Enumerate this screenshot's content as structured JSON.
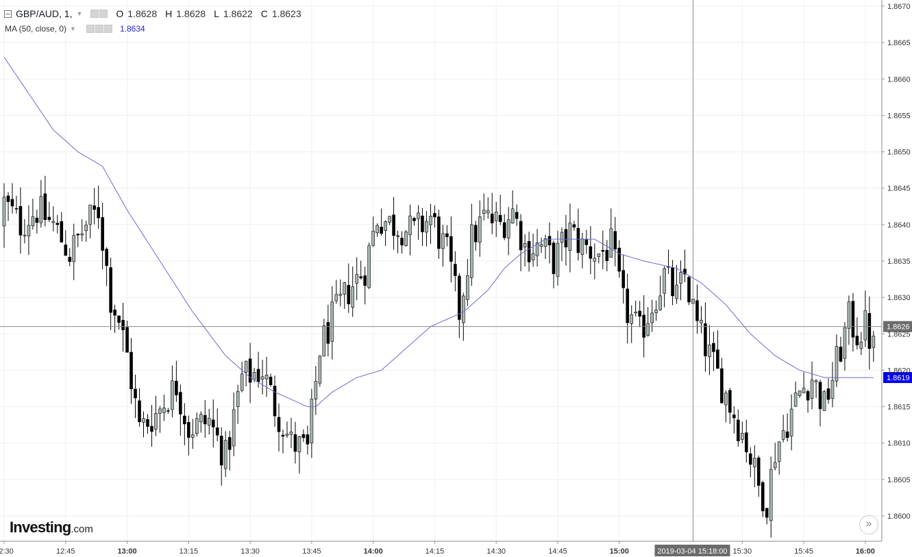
{
  "header": {
    "symbol": "GBP/AUD, 1,",
    "open_label": "O",
    "open": "1.8628",
    "high_label": "H",
    "high": "1.8628",
    "low_label": "L",
    "low": "1.8622",
    "close_label": "C",
    "close": "1.8623"
  },
  "ma": {
    "label": "MA (50, close, 0)",
    "value": "1.8634",
    "color": "#2323d5"
  },
  "branding": {
    "name": "Investing",
    "domain": ".com"
  },
  "crosshair": {
    "time_label": "2019-03-04 15:18:00",
    "price_label": "1.8626"
  },
  "scroll_button": "»",
  "colors": {
    "up": "#a9b4b4",
    "down": "#000000",
    "ma": "#6a6ad0",
    "ma_badge": "#0000ee",
    "grid": "#efefef"
  },
  "chart_data": {
    "type": "candlestick",
    "title": "GBP/AUD, 1",
    "ylim": [
      1.8598,
      1.867
    ],
    "y_ticks": [
      "1.8670",
      "1.8665",
      "1.8660",
      "1.8655",
      "1.8650",
      "1.8645",
      "1.8640",
      "1.8635",
      "1.8630",
      "1.8625",
      "1.8620",
      "1.8615",
      "1.8610",
      "1.8605",
      "1.8600"
    ],
    "x_ticks": [
      {
        "label": "12:30",
        "bar": 0,
        "bold": false
      },
      {
        "label": "12:45",
        "bar": 15,
        "bold": false
      },
      {
        "label": "13:00",
        "bar": 30,
        "bold": true
      },
      {
        "label": "13:15",
        "bar": 45,
        "bold": false
      },
      {
        "label": "13:30",
        "bar": 60,
        "bold": false
      },
      {
        "label": "13:45",
        "bar": 75,
        "bold": false
      },
      {
        "label": "14:00",
        "bar": 90,
        "bold": true
      },
      {
        "label": "14:15",
        "bar": 105,
        "bold": false
      },
      {
        "label": "14:30",
        "bar": 120,
        "bold": false
      },
      {
        "label": "14:45",
        "bar": 135,
        "bold": false
      },
      {
        "label": "15:00",
        "bar": 150,
        "bold": true
      },
      {
        "label": "15:30",
        "bar": 180,
        "bold": false
      },
      {
        "label": "15:45",
        "bar": 195,
        "bold": false
      },
      {
        "label": "16:00",
        "bar": 210,
        "bold": true
      }
    ],
    "current_price": "1.8619",
    "crosshair_price": 1.8626,
    "crosshair_bar": 168,
    "close_anchors": [
      [
        0,
        1.8643
      ],
      [
        4,
        1.864
      ],
      [
        8,
        1.8642
      ],
      [
        12,
        1.864
      ],
      [
        16,
        1.8636
      ],
      [
        20,
        1.864
      ],
      [
        23,
        1.8642
      ],
      [
        26,
        1.863
      ],
      [
        28,
        1.8627
      ],
      [
        30,
        1.8622
      ],
      [
        33,
        1.8612
      ],
      [
        37,
        1.8614
      ],
      [
        42,
        1.8618
      ],
      [
        45,
        1.8612
      ],
      [
        50,
        1.8613
      ],
      [
        54,
        1.8608
      ],
      [
        58,
        1.8619
      ],
      [
        63,
        1.862
      ],
      [
        66,
        1.8615
      ],
      [
        70,
        1.861
      ],
      [
        74,
        1.8609
      ],
      [
        77,
        1.8623
      ],
      [
        80,
        1.8627
      ],
      [
        84,
        1.8631
      ],
      [
        88,
        1.8634
      ],
      [
        91,
        1.8641
      ],
      [
        95,
        1.864
      ],
      [
        100,
        1.8639
      ],
      [
        104,
        1.8641
      ],
      [
        108,
        1.8636
      ],
      [
        111,
        1.8628
      ],
      [
        114,
        1.8638
      ],
      [
        117,
        1.8641
      ],
      [
        121,
        1.864
      ],
      [
        124,
        1.8642
      ],
      [
        127,
        1.8637
      ],
      [
        131,
        1.8637
      ],
      [
        134,
        1.8635
      ],
      [
        138,
        1.8639
      ],
      [
        141,
        1.8637
      ],
      [
        145,
        1.8636
      ],
      [
        148,
        1.8637
      ],
      [
        151,
        1.8629
      ],
      [
        155,
        1.8625
      ],
      [
        158,
        1.8629
      ],
      [
        161,
        1.8633
      ],
      [
        164,
        1.863
      ],
      [
        166,
        1.8633
      ],
      [
        169,
        1.8626
      ],
      [
        172,
        1.8622
      ],
      [
        175,
        1.8618
      ],
      [
        178,
        1.8614
      ],
      [
        181,
        1.861
      ],
      [
        184,
        1.8604
      ],
      [
        186,
        1.8602
      ],
      [
        188,
        1.8609
      ],
      [
        191,
        1.8613
      ],
      [
        194,
        1.8617
      ],
      [
        197,
        1.8619
      ],
      [
        200,
        1.8615
      ],
      [
        203,
        1.8621
      ],
      [
        206,
        1.8627
      ],
      [
        208,
        1.8625
      ],
      [
        210,
        1.8626
      ],
      [
        212,
        1.8623
      ]
    ],
    "ma_anchors": [
      [
        0,
        1.8663
      ],
      [
        6,
        1.8658
      ],
      [
        12,
        1.8653
      ],
      [
        18,
        1.865
      ],
      [
        24,
        1.8648
      ],
      [
        30,
        1.8642
      ],
      [
        38,
        1.8635
      ],
      [
        46,
        1.8628
      ],
      [
        54,
        1.8622
      ],
      [
        60,
        1.8619
      ],
      [
        66,
        1.8617
      ],
      [
        70,
        1.8616
      ],
      [
        74,
        1.8615
      ],
      [
        76,
        1.8615
      ],
      [
        80,
        1.8617
      ],
      [
        86,
        1.8619
      ],
      [
        92,
        1.862
      ],
      [
        98,
        1.8623
      ],
      [
        104,
        1.8626
      ],
      [
        108,
        1.8627
      ],
      [
        112,
        1.8628
      ],
      [
        118,
        1.8631
      ],
      [
        122,
        1.8634
      ],
      [
        126,
        1.8636
      ],
      [
        132,
        1.8638
      ],
      [
        138,
        1.8638
      ],
      [
        144,
        1.8638
      ],
      [
        150,
        1.8636
      ],
      [
        156,
        1.8635
      ],
      [
        164,
        1.8634
      ],
      [
        170,
        1.8632
      ],
      [
        176,
        1.8629
      ],
      [
        182,
        1.8625
      ],
      [
        188,
        1.8622
      ],
      [
        194,
        1.862
      ],
      [
        200,
        1.8619
      ],
      [
        206,
        1.8619
      ],
      [
        212,
        1.8619
      ]
    ]
  }
}
